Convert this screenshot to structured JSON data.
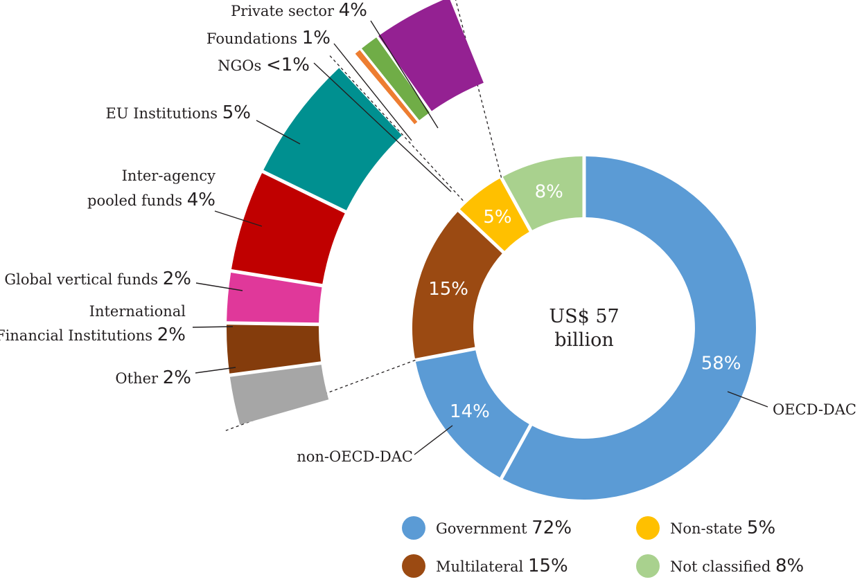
{
  "chart_data": {
    "type": "pie",
    "center_text": [
      "US$ 57",
      "billion"
    ],
    "inner_ring": [
      {
        "name": "OECD-DAC",
        "value": 58,
        "label": "58%",
        "color": "#5b9bd5"
      },
      {
        "name": "non-OECD-DAC",
        "value": 14,
        "label": "14%",
        "color": "#5b9bd5"
      },
      {
        "name": "",
        "value": 15,
        "label": "15%",
        "color": "#9b4a12"
      },
      {
        "name": "",
        "value": 5,
        "label": "5%",
        "color": "#ffc000"
      },
      {
        "name": "",
        "value": 8,
        "label": "8%",
        "color": "#a9d18e"
      }
    ],
    "multilateral_breakdown": [
      {
        "name": "Other",
        "value": 2,
        "label": "2%",
        "color": "#a6a6a6"
      },
      {
        "name": "International Financial Institutions",
        "lines": [
          "International",
          "Financial Institutions"
        ],
        "value": 2,
        "label": "2%",
        "color": "#843c0c"
      },
      {
        "name": "Global vertical funds",
        "value": 2,
        "label": "2%",
        "color": "#e0389a"
      },
      {
        "name": "Inter-agency pooled funds",
        "lines": [
          "Inter-agency",
          "pooled funds"
        ],
        "value": 4,
        "label": "4%",
        "color": "#c00000"
      },
      {
        "name": "EU Institutions",
        "value": 5,
        "label": "5%",
        "color": "#009090"
      }
    ],
    "nonstate_breakdown": [
      {
        "name": "NGOs",
        "value": 0.4,
        "label": "<1%",
        "color": "#ed7d31"
      },
      {
        "name": "Foundations",
        "value": 1,
        "label": "1%",
        "color": "#70ad47"
      },
      {
        "name": "Private sector",
        "value": 4,
        "label": "4%",
        "color": "#942192"
      }
    ],
    "legend": [
      {
        "name": "Government",
        "value": "72%",
        "color": "#5b9bd5"
      },
      {
        "name": "Non-state",
        "value": "5%",
        "color": "#ffc000"
      },
      {
        "name": "Multilateral",
        "value": "15%",
        "color": "#9b4a12"
      },
      {
        "name": "Not classified",
        "value": "8%",
        "color": "#a9d18e"
      }
    ]
  }
}
